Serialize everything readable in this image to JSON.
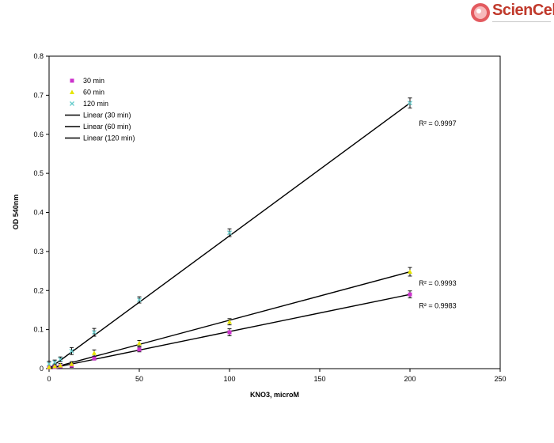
{
  "logo": {
    "text": "ScienCell",
    "accent": "#d9363e"
  },
  "chart_data": {
    "type": "scatter",
    "title": "",
    "xlabel": "KNO3, microM",
    "ylabel": "OD 540nm",
    "xlim": [
      0,
      250
    ],
    "ylim": [
      0,
      0.8
    ],
    "xticks": [
      "0",
      "50",
      "100",
      "150",
      "200",
      "250"
    ],
    "yticks": [
      "0",
      "0.1",
      "0.2",
      "0.3",
      "0.4",
      "0.5",
      "0.6",
      "0.7",
      "0.8"
    ],
    "grid": false,
    "legend_position": "top-left",
    "series": [
      {
        "name": "30 min",
        "color": "#cc33cc",
        "marker": "square",
        "x": [
          0,
          3.125,
          6.25,
          12.5,
          25,
          50,
          100,
          200
        ],
        "y": [
          0.003,
          0.004,
          0.006,
          0.008,
          0.026,
          0.049,
          0.093,
          0.19
        ],
        "err": [
          0.003,
          0.003,
          0.004,
          0.005,
          0.004,
          0.006,
          0.009,
          0.009
        ]
      },
      {
        "name": "60 min",
        "color": "#e6e600",
        "marker": "triangle",
        "x": [
          0,
          3.125,
          6.25,
          12.5,
          25,
          50,
          100,
          200
        ],
        "y": [
          0.004,
          0.006,
          0.008,
          0.012,
          0.04,
          0.065,
          0.12,
          0.248
        ],
        "err": [
          0.004,
          0.004,
          0.005,
          0.006,
          0.008,
          0.007,
          0.008,
          0.011
        ]
      },
      {
        "name": "120 min",
        "color": "#66cccc",
        "marker": "x",
        "x": [
          0,
          3.125,
          6.25,
          12.5,
          25,
          50,
          100,
          200
        ],
        "y": [
          0.012,
          0.016,
          0.024,
          0.045,
          0.093,
          0.176,
          0.348,
          0.68
        ],
        "err": [
          0.007,
          0.006,
          0.006,
          0.009,
          0.01,
          0.008,
          0.01,
          0.013
        ]
      }
    ],
    "trendlines": [
      {
        "name": "Linear (30 min)",
        "color": "#000000",
        "x": [
          0,
          200
        ],
        "y": [
          0.0,
          0.19
        ],
        "r2_label": "R² = 0.9983",
        "r2_anchor": [
          205,
          0.155
        ]
      },
      {
        "name": "Linear (60 min)",
        "color": "#000000",
        "x": [
          0,
          200
        ],
        "y": [
          0.0,
          0.248
        ],
        "r2_label": "R² = 0.9993",
        "r2_anchor": [
          205,
          0.213
        ]
      },
      {
        "name": "Linear (120 min)",
        "color": "#000000",
        "x": [
          0,
          200
        ],
        "y": [
          0.0,
          0.68
        ],
        "r2_label": "R² = 0.9997",
        "r2_anchor": [
          205,
          0.622
        ]
      }
    ]
  }
}
